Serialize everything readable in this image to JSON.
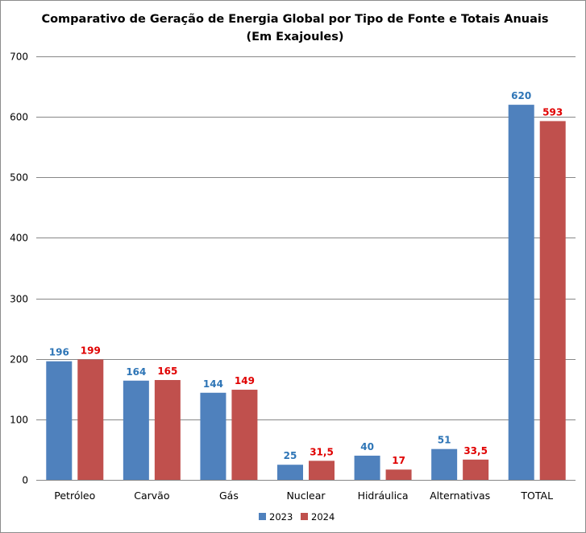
{
  "chart_data": {
    "type": "bar",
    "title": "Comparativo de Geração de Energia Global por Tipo de Fonte e Totais Anuais",
    "subtitle": "(Em Exajoules)",
    "xlabel": "",
    "ylabel": "",
    "categories": [
      "Petróleo",
      "Carvão",
      "Gás",
      "Nuclear",
      "Hidráulica",
      "Alternativas",
      "TOTAL"
    ],
    "series": [
      {
        "name": "2023",
        "color": "#4F81BD",
        "label_color": "#2E75B6",
        "values": [
          196,
          164,
          144,
          25,
          40,
          51,
          620
        ],
        "labels": [
          "196",
          "164",
          "144",
          "25",
          "40",
          "51",
          "620"
        ]
      },
      {
        "name": "2024",
        "color": "#C0504D",
        "label_color": "#E00000",
        "values": [
          199,
          165,
          149,
          31.5,
          17,
          33.5,
          593
        ],
        "labels": [
          "199",
          "165",
          "149",
          "31,5",
          "17",
          "33,5",
          "593"
        ]
      }
    ],
    "ylim": [
      0,
      700
    ],
    "yticks": [
      0,
      100,
      200,
      300,
      400,
      500,
      600,
      700
    ],
    "grid": true,
    "legend_position": "bottom"
  }
}
